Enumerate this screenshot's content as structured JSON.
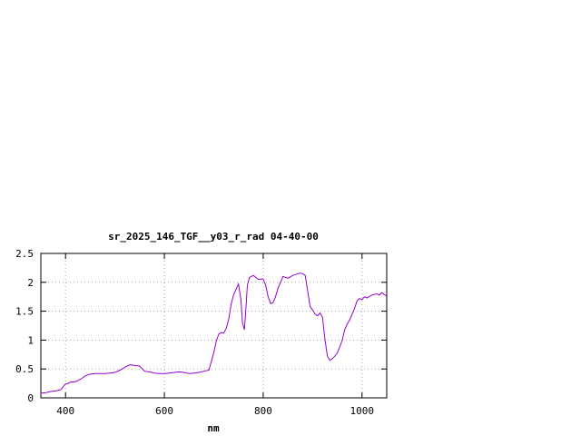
{
  "chart_data": {
    "type": "line",
    "title": "sr_2025_146_TGF__y03_r_rad 04-40-00",
    "xlabel": "nm",
    "ylabel": "",
    "xlim": [
      350,
      1050
    ],
    "ylim": [
      0,
      2.5
    ],
    "x_ticks": [
      400,
      600,
      800,
      1000
    ],
    "y_ticks": [
      0,
      0.5,
      1,
      1.5,
      2,
      2.5
    ],
    "x_tick_labels": [
      "400",
      "600",
      "800",
      "1000"
    ],
    "y_tick_labels": [
      "0",
      "0.5",
      "1",
      "1.5",
      "2",
      "2.5"
    ],
    "grid": true,
    "legend": "none",
    "line_color": "#9400D3",
    "series": [
      {
        "x": [
          350,
          360,
          370,
          380,
          390,
          400,
          405,
          410,
          420,
          430,
          440,
          450,
          460,
          470,
          480,
          490,
          500,
          510,
          520,
          530,
          540,
          550,
          560,
          570,
          580,
          590,
          600,
          610,
          620,
          630,
          640,
          650,
          660,
          670,
          680,
          690,
          700,
          705,
          710,
          715,
          720,
          725,
          730,
          735,
          740,
          745,
          750,
          755,
          758,
          762,
          765,
          768,
          772,
          780,
          790,
          800,
          805,
          810,
          815,
          820,
          825,
          830,
          840,
          850,
          860,
          870,
          875,
          880,
          885,
          890,
          895,
          900,
          905,
          910,
          915,
          920,
          925,
          930,
          935,
          940,
          945,
          950,
          955,
          960,
          965,
          970,
          975,
          980,
          985,
          990,
          995,
          1000,
          1005,
          1010,
          1020,
          1030,
          1035,
          1040,
          1050
        ],
        "y": [
          0.08,
          0.09,
          0.11,
          0.12,
          0.14,
          0.24,
          0.25,
          0.27,
          0.28,
          0.32,
          0.38,
          0.41,
          0.42,
          0.42,
          0.42,
          0.43,
          0.44,
          0.48,
          0.53,
          0.57,
          0.56,
          0.55,
          0.46,
          0.45,
          0.43,
          0.42,
          0.42,
          0.43,
          0.44,
          0.45,
          0.44,
          0.42,
          0.43,
          0.44,
          0.46,
          0.48,
          0.78,
          0.98,
          1.1,
          1.13,
          1.12,
          1.2,
          1.35,
          1.62,
          1.78,
          1.88,
          1.97,
          1.7,
          1.3,
          1.18,
          1.55,
          1.95,
          2.08,
          2.12,
          2.05,
          2.06,
          1.95,
          1.75,
          1.63,
          1.65,
          1.75,
          1.9,
          2.1,
          2.07,
          2.12,
          2.15,
          2.16,
          2.15,
          2.12,
          1.85,
          1.58,
          1.52,
          1.45,
          1.42,
          1.47,
          1.4,
          1.0,
          0.72,
          0.65,
          0.68,
          0.72,
          0.78,
          0.88,
          1.0,
          1.18,
          1.28,
          1.35,
          1.45,
          1.55,
          1.68,
          1.72,
          1.7,
          1.75,
          1.73,
          1.78,
          1.8,
          1.78,
          1.82,
          1.76
        ]
      }
    ]
  }
}
